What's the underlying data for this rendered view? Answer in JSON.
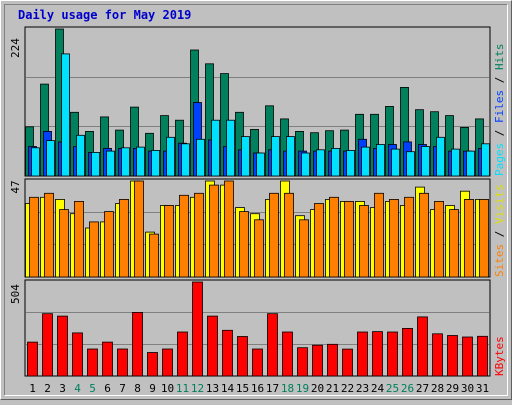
{
  "title": "Daily usage for May 2019",
  "colors": {
    "background": "#C0C0C0",
    "title_text": "#0000CC",
    "hits": "#00805C",
    "files": "#0040FF",
    "pages": "#00E0FF",
    "visits": "#FFFF00",
    "sites": "#FF8000",
    "kbytes": "#FF0000",
    "weekend_day": "#00805C",
    "weekday": "#000000",
    "grid": "#808080"
  },
  "labels": {
    "pane1_max": "224",
    "pane2_max": "47",
    "pane3_max": "504",
    "pane1_legend": {
      "pages": "Pages",
      "sep1": " / ",
      "files": "Files",
      "sep2": " / ",
      "hits": "Hits"
    },
    "pane2_legend": {
      "sites": "Sites",
      "sep": " / ",
      "visits": "Visits"
    },
    "pane3_legend": {
      "kbytes": "KBytes"
    }
  },
  "chart_data": {
    "type": "bar",
    "title": "Daily usage for May 2019",
    "categories": [
      "1",
      "2",
      "3",
      "4",
      "5",
      "6",
      "7",
      "8",
      "9",
      "10",
      "11",
      "12",
      "13",
      "14",
      "15",
      "16",
      "17",
      "18",
      "19",
      "20",
      "21",
      "22",
      "23",
      "24",
      "25",
      "26",
      "27",
      "28",
      "29",
      "30",
      "31"
    ],
    "weekend_days": [
      "4",
      "5",
      "11",
      "12",
      "18",
      "19",
      "25",
      "26"
    ],
    "panes": [
      {
        "name": "hits-files-pages",
        "ymax": 224,
        "ymax_label": "224",
        "series": [
          {
            "name": "Hits",
            "color": "#00805C",
            "values": [
              75,
              140,
              224,
              97,
              68,
              90,
              70,
              105,
              65,
              92,
              85,
              192,
              171,
              156,
              97,
              71,
              107,
              87,
              68,
              66,
              69,
              70,
              94,
              94,
              106,
              135,
              101,
              98,
              92,
              74,
              87
            ]
          },
          {
            "name": "Files",
            "color": "#0040FF",
            "values": [
              45,
              68,
              52,
              45,
              36,
              42,
              42,
              42,
              38,
              38,
              50,
              112,
              55,
              45,
              40,
              35,
              40,
              38,
              38,
              38,
              38,
              38,
              56,
              42,
              48,
              52,
              48,
              45,
              38,
              38,
              42
            ]
          },
          {
            "name": "Pages",
            "color": "#00E0FF",
            "values": [
              43,
              54,
              186,
              62,
              36,
              38,
              43,
              44,
              39,
              59,
              49,
              56,
              85,
              85,
              60,
              35,
              60,
              60,
              35,
              40,
              42,
              39,
              44,
              48,
              41,
              37,
              45,
              59,
              41,
              38,
              49
            ]
          }
        ]
      },
      {
        "name": "visits-sites",
        "ymax": 47,
        "ymax_label": "47",
        "series": [
          {
            "name": "Visits",
            "color": "#FFFF00",
            "values": [
              36,
              39,
              38,
              31,
              24,
              27,
              36,
              47,
              22,
              35,
              35,
              39,
              47,
              45,
              34,
              31,
              38,
              47,
              30,
              33,
              38,
              37,
              37,
              34,
              37,
              35,
              44,
              33,
              35,
              42,
              38
            ]
          },
          {
            "name": "Sites",
            "color": "#FF8000",
            "values": [
              39,
              41,
              33,
              37,
              27,
              32,
              38,
              47,
              21,
              35,
              40,
              41,
              45,
              47,
              32,
              28,
              41,
              41,
              28,
              36,
              39,
              37,
              35,
              41,
              38,
              39,
              41,
              37,
              33,
              38,
              38
            ]
          }
        ]
      },
      {
        "name": "kbytes",
        "ymax": 504,
        "ymax_label": "504",
        "series": [
          {
            "name": "KBytes",
            "color": "#FF0000",
            "values": [
              182,
              334,
              321,
              231,
              145,
              182,
              145,
              341,
              126,
              145,
              236,
              504,
              321,
              245,
              212,
              145,
              334,
              236,
              152,
              165,
              170,
              144,
              236,
              238,
              236,
              255,
              317,
              226,
              217,
              209,
              213
            ]
          }
        ]
      }
    ]
  }
}
